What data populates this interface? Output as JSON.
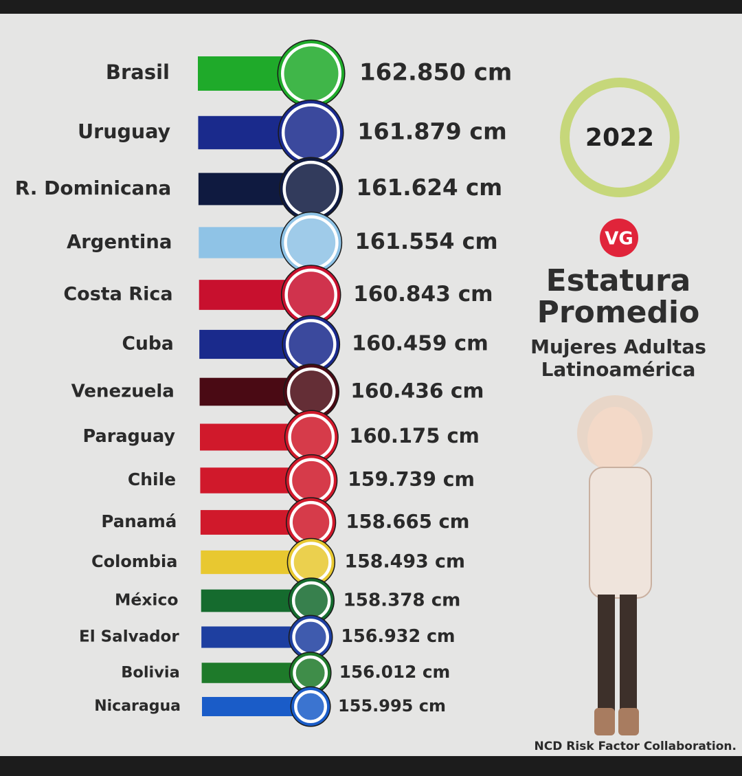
{
  "chart_data": {
    "type": "bar",
    "orientation": "horizontal",
    "title": "Estatura Promedio",
    "subtitle": "Mujeres Adultas Latinoamérica",
    "year": "2022",
    "logo": "VG",
    "source": "NCD Risk Factor Collaboration.",
    "categories": [
      "Brasil",
      "Uruguay",
      "R. Dominicana",
      "Argentina",
      "Costa Rica",
      "Cuba",
      "Venezuela",
      "Paraguay",
      "Chile",
      "Panamá",
      "Colombia",
      "México",
      "El Salvador",
      "Bolivia",
      "Nicaragua"
    ],
    "values": [
      162.85,
      161.879,
      161.624,
      161.554,
      160.843,
      160.459,
      160.436,
      160.175,
      159.739,
      158.665,
      158.493,
      158.378,
      156.932,
      156.012,
      155.995
    ],
    "value_labels": [
      "162.850 cm",
      "161.879 cm",
      "161.624 cm",
      "161.554 cm",
      "160.843 cm",
      "160.459 cm",
      "160.436 cm",
      "160.175 cm",
      "159.739 cm",
      "158.665 cm",
      "158.493 cm",
      "158.378 cm",
      "156.932 cm",
      "156.012 cm",
      "155.995 cm"
    ],
    "colors": [
      "#1faa2a",
      "#1a2a8c",
      "#0f1a40",
      "#8fc3e6",
      "#c8102e",
      "#1a2a8c",
      "#4a0a14",
      "#d0192b",
      "#d0192b",
      "#d0192b",
      "#e8c830",
      "#156b2e",
      "#1e3fa0",
      "#1e7a2a",
      "#1a5cc8"
    ]
  }
}
